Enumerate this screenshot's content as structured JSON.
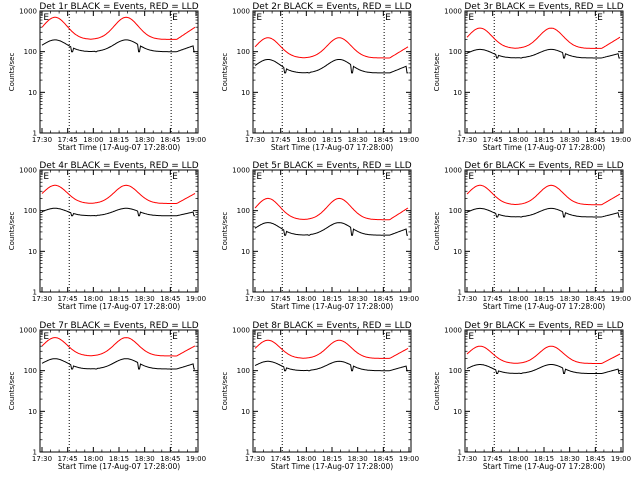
{
  "chart_data": [
    {
      "type": "line",
      "title": "Det 1r BLACK = Events, RED = LLD",
      "xlabel": "Start Time (17-Aug-07 17:28:00)",
      "ylabel": "Counts/sec",
      "xticks": [
        "17:30",
        "17:45",
        "18:00",
        "18:15",
        "18:30",
        "18:45",
        "19:00"
      ],
      "yticks": [
        "1",
        "10",
        "100",
        "1000"
      ],
      "ylim": [
        1,
        1000
      ],
      "yscale": "log",
      "markers": [
        "E",
        "E"
      ],
      "series": [
        {
          "name": "Events",
          "color": "#000000",
          "min": 100,
          "max": 210
        },
        {
          "name": "LLD",
          "color": "#ff0000",
          "min": 200,
          "max": 700
        }
      ]
    },
    {
      "type": "line",
      "title": "Det 2r BLACK = Events, RED = LLD",
      "xlabel": "Start Time (17-Aug-07 17:28:00)",
      "ylabel": "Counts/sec",
      "xticks": [
        "17:30",
        "17:45",
        "18:00",
        "18:15",
        "18:30",
        "18:45",
        "19:00"
      ],
      "yticks": [
        "1",
        "10",
        "100",
        "1000"
      ],
      "ylim": [
        1,
        1000
      ],
      "yscale": "log",
      "markers": [
        "E",
        "E"
      ],
      "series": [
        {
          "name": "Events",
          "color": "#000000",
          "min": 30,
          "max": 70
        },
        {
          "name": "LLD",
          "color": "#ff0000",
          "min": 70,
          "max": 220
        }
      ]
    },
    {
      "type": "line",
      "title": "Det 3r BLACK = Events, RED = LLD",
      "xlabel": "Start Time (17-Aug-07 17:28:00)",
      "ylabel": "Counts/sec",
      "xticks": [
        "17:30",
        "17:45",
        "18:00",
        "18:15",
        "18:30",
        "18:45",
        "19:00"
      ],
      "yticks": [
        "1",
        "10",
        "100",
        "1000"
      ],
      "ylim": [
        1,
        1000
      ],
      "yscale": "log",
      "markers": [
        "E",
        "E"
      ],
      "series": [
        {
          "name": "Events",
          "color": "#000000",
          "min": 70,
          "max": 120
        },
        {
          "name": "LLD",
          "color": "#ff0000",
          "min": 120,
          "max": 380
        }
      ]
    },
    {
      "type": "line",
      "title": "Det 4r BLACK = Events, RED = LLD",
      "xlabel": "Start Time (17-Aug-07 17:28:00)",
      "ylabel": "Counts/sec",
      "xticks": [
        "17:30",
        "17:45",
        "18:00",
        "18:15",
        "18:30",
        "18:45",
        "19:00"
      ],
      "yticks": [
        "1",
        "10",
        "100",
        "1000"
      ],
      "ylim": [
        1,
        1000
      ],
      "yscale": "log",
      "markers": [
        "E",
        "E"
      ],
      "series": [
        {
          "name": "Events",
          "color": "#000000",
          "min": 75,
          "max": 120
        },
        {
          "name": "LLD",
          "color": "#ff0000",
          "min": 150,
          "max": 420
        }
      ]
    },
    {
      "type": "line",
      "title": "Det 5r BLACK = Events, RED = LLD",
      "xlabel": "Start Time (17-Aug-07 17:28:00)",
      "ylabel": "Counts/sec",
      "xticks": [
        "17:30",
        "17:45",
        "18:00",
        "18:15",
        "18:30",
        "18:45",
        "19:00"
      ],
      "yticks": [
        "1",
        "10",
        "100",
        "1000"
      ],
      "ylim": [
        1,
        1000
      ],
      "yscale": "log",
      "markers": [
        "E",
        "E"
      ],
      "series": [
        {
          "name": "Events",
          "color": "#000000",
          "min": 25,
          "max": 55
        },
        {
          "name": "LLD",
          "color": "#ff0000",
          "min": 60,
          "max": 200
        }
      ]
    },
    {
      "type": "line",
      "title": "Det 6r BLACK = Events, RED = LLD",
      "xlabel": "Start Time (17-Aug-07 17:28:00)",
      "ylabel": "Counts/sec",
      "xticks": [
        "17:30",
        "17:45",
        "18:00",
        "18:15",
        "18:30",
        "18:45",
        "19:00"
      ],
      "yticks": [
        "1",
        "10",
        "100",
        "1000"
      ],
      "ylim": [
        1,
        1000
      ],
      "yscale": "log",
      "markers": [
        "E",
        "E"
      ],
      "series": [
        {
          "name": "Events",
          "color": "#000000",
          "min": 70,
          "max": 120
        },
        {
          "name": "LLD",
          "color": "#ff0000",
          "min": 140,
          "max": 420
        }
      ]
    },
    {
      "type": "line",
      "title": "Det 7r BLACK = Events, RED = LLD",
      "xlabel": "Start Time (17-Aug-07 17:28:00)",
      "ylabel": "Counts/sec",
      "xticks": [
        "17:30",
        "17:45",
        "18:00",
        "18:15",
        "18:30",
        "18:45",
        "19:00"
      ],
      "yticks": [
        "1",
        "10",
        "100",
        "1000"
      ],
      "ylim": [
        1,
        1000
      ],
      "yscale": "log",
      "markers": [
        "E",
        "E"
      ],
      "series": [
        {
          "name": "Events",
          "color": "#000000",
          "min": 110,
          "max": 210
        },
        {
          "name": "LLD",
          "color": "#ff0000",
          "min": 230,
          "max": 650
        }
      ]
    },
    {
      "type": "line",
      "title": "Det 8r BLACK = Events, RED = LLD",
      "xlabel": "Start Time (17-Aug-07 17:28:00)",
      "ylabel": "Counts/sec",
      "xticks": [
        "17:30",
        "17:45",
        "18:00",
        "18:15",
        "18:30",
        "18:45",
        "19:00"
      ],
      "yticks": [
        "1",
        "10",
        "100",
        "1000"
      ],
      "ylim": [
        1,
        1000
      ],
      "yscale": "log",
      "markers": [
        "E",
        "E"
      ],
      "series": [
        {
          "name": "Events",
          "color": "#000000",
          "min": 100,
          "max": 180
        },
        {
          "name": "LLD",
          "color": "#ff0000",
          "min": 200,
          "max": 560
        }
      ]
    },
    {
      "type": "line",
      "title": "Det 9r BLACK = Events, RED = LLD",
      "xlabel": "Start Time (17-Aug-07 17:28:00)",
      "ylabel": "Counts/sec",
      "xticks": [
        "17:30",
        "17:45",
        "18:00",
        "18:15",
        "18:30",
        "18:45",
        "19:00"
      ],
      "yticks": [
        "1",
        "10",
        "100",
        "1000"
      ],
      "ylim": [
        1,
        1000
      ],
      "yscale": "log",
      "markers": [
        "E",
        "E"
      ],
      "series": [
        {
          "name": "Events",
          "color": "#000000",
          "min": 85,
          "max": 150
        },
        {
          "name": "LLD",
          "color": "#ff0000",
          "min": 150,
          "max": 400
        }
      ]
    }
  ]
}
